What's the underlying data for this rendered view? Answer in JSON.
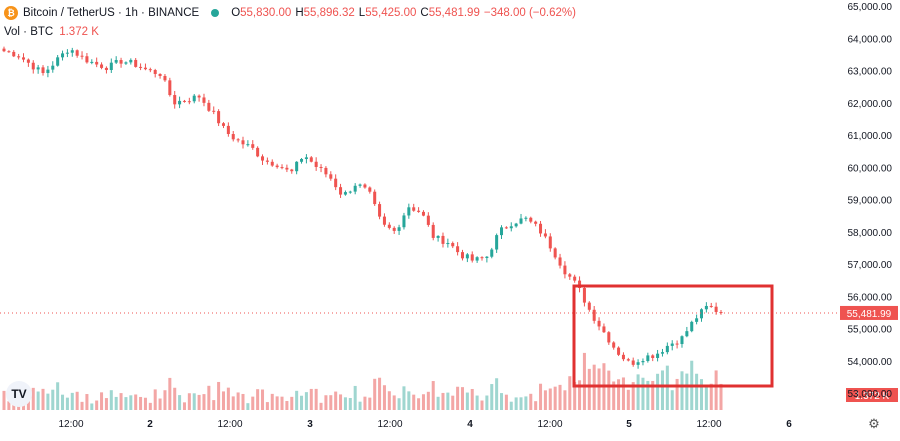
{
  "header": {
    "symbol_title": "Bitcoin / TetherUS · 1h · BINANCE",
    "coin_glyph": "₿",
    "ohlc": [
      {
        "k": "O",
        "v": "55,830.00"
      },
      {
        "k": "H",
        "v": "55,896.32"
      },
      {
        "k": "L",
        "v": "55,425.00"
      },
      {
        "k": "C",
        "v": "55,481.99"
      }
    ],
    "change": "−348.00 (−0.62%)"
  },
  "volume_legend": {
    "label": "Vol · BTC",
    "value": "1.372 K"
  },
  "logo": {
    "text": "TV"
  },
  "settings": {
    "icon": "gear-icon"
  },
  "colors": {
    "up": "#26a69a",
    "down": "#ef5350",
    "up_vol": "#9fd6d0",
    "down_vol": "#f3a6a5",
    "highlight": "#e03131"
  },
  "chart_data": {
    "type": "candlestick",
    "price_axis": {
      "min": 53000,
      "max": 65000,
      "ticks": [
        "65,000.00",
        "64,000.00",
        "63,000.00",
        "62,000.00",
        "61,000.00",
        "60,000.00",
        "59,000.00",
        "58,000.00",
        "57,000.00",
        "56,000.00",
        "55,000.00",
        "54,000.00",
        "53,000.00"
      ]
    },
    "current_price": "55,481.99",
    "current_volume": "1.372 K",
    "time_axis": {
      "labels": [
        "12:00",
        "2",
        "12:00",
        "3",
        "12:00",
        "4",
        "12:00",
        "5",
        "12:00",
        "6"
      ]
    },
    "anchor_prices": [
      63600,
      63500,
      63200,
      62900,
      63300,
      63700,
      63400,
      63200,
      63100,
      63300,
      63200,
      63000,
      62900,
      62000,
      62100,
      62200,
      61700,
      61100,
      60800,
      60600,
      60200,
      60100,
      59800,
      60400,
      60000,
      59700,
      59100,
      59500,
      59200,
      58200,
      58000,
      58800,
      58600,
      57800,
      57700,
      57300,
      57100,
      57200,
      58000,
      58300,
      58400,
      58100,
      57500,
      56800,
      56300,
      55500,
      54900,
      54300,
      53900,
      54100,
      54200,
      54500,
      54700,
      55300,
      55700,
      55481.99
    ],
    "candle_count": 148,
    "volume_scale_max": 4.0
  },
  "highlight_box": {
    "label": "price-drop-highlight"
  }
}
